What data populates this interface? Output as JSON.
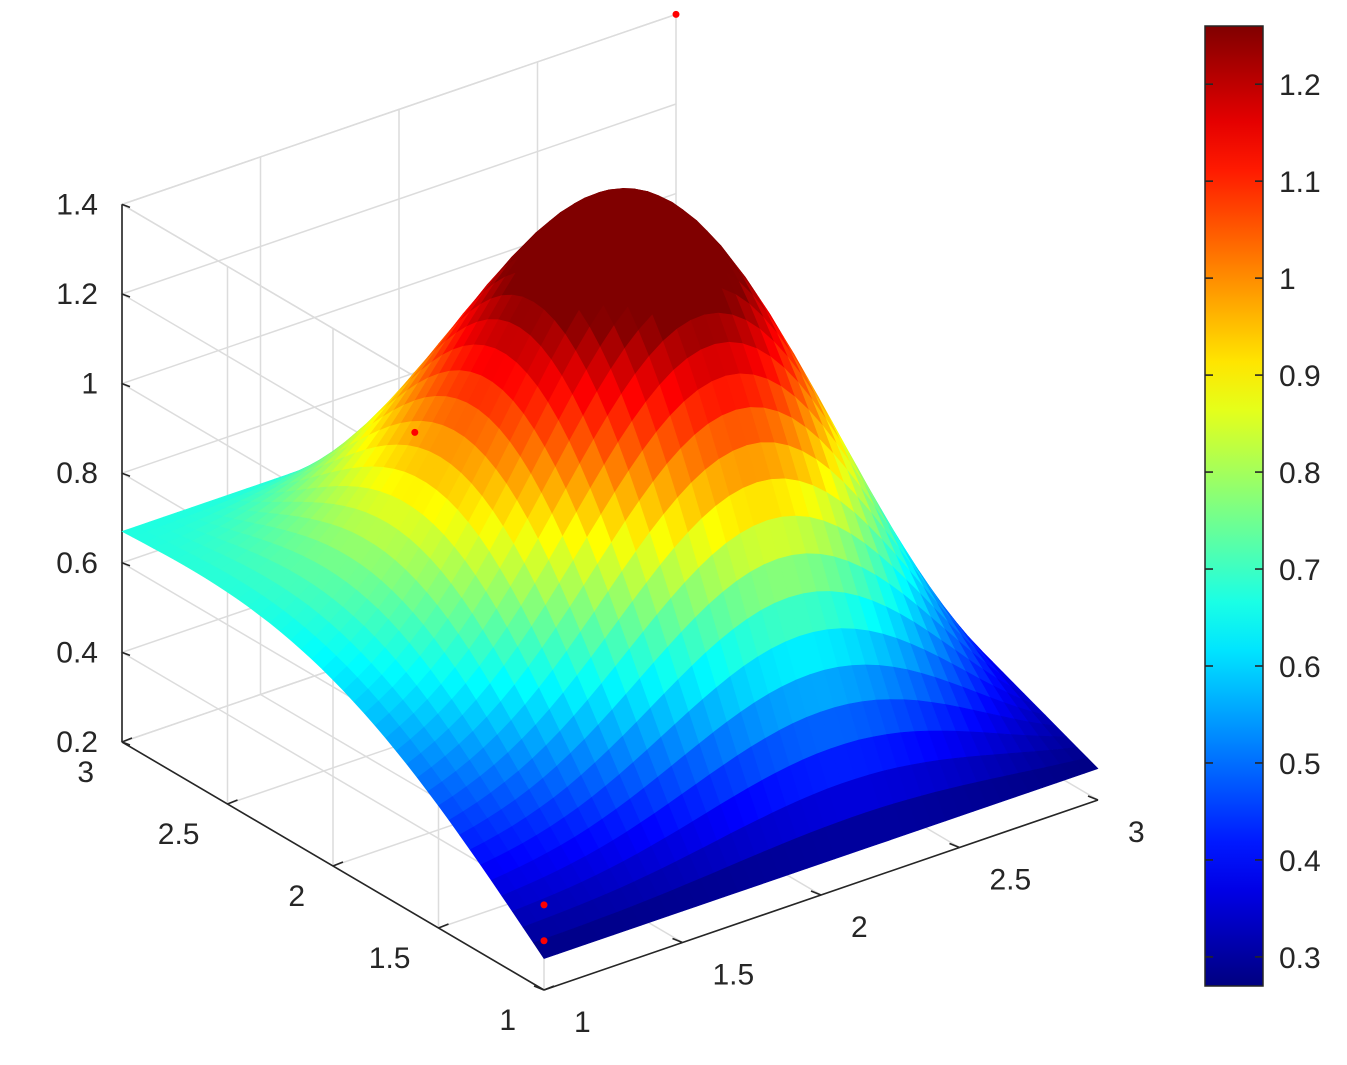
{
  "chart_data": {
    "type": "surface",
    "x_ticks": [
      "1",
      "1.5",
      "2",
      "2.5",
      "3"
    ],
    "y_ticks": [
      "1",
      "1.5",
      "2",
      "2.5",
      "3"
    ],
    "z_ticks": [
      "0.2",
      "0.4",
      "0.6",
      "0.8",
      "1",
      "1.2",
      "1.4"
    ],
    "xlim": [
      1,
      3
    ],
    "ylim": [
      1,
      3
    ],
    "zlim": [
      0.2,
      1.4
    ],
    "grid": "on",
    "colormap": "jet",
    "colorbar": {
      "location": "right",
      "range": [
        0.27,
        1.26
      ],
      "ticks": [
        "0.3",
        "0.4",
        "0.5",
        "0.6",
        "0.7",
        "0.8",
        "0.9",
        "1",
        "1.1",
        "1.2"
      ]
    },
    "corner_values": [
      {
        "x": 1,
        "y": 1,
        "z": 0.27
      },
      {
        "x": 3,
        "y": 1,
        "z": 0.27
      },
      {
        "x": 3,
        "y": 3,
        "z": 0.67
      },
      {
        "x": 1,
        "y": 3,
        "z": 0.67
      }
    ],
    "peak": {
      "x": 2.2,
      "y": 2.1,
      "z": 1.26
    },
    "markers": [
      {
        "x": 1,
        "y": 1,
        "z": 0.31,
        "color": "#ff0000"
      },
      {
        "x": 1,
        "y": 1,
        "z": 0.39,
        "color": "#ff0000"
      },
      {
        "x": 1.6,
        "y": 2.4,
        "z": 0.93,
        "color": "#ff0000"
      },
      {
        "x": 3,
        "y": 3,
        "z": 1.4,
        "color": "#ff0000"
      }
    ]
  }
}
